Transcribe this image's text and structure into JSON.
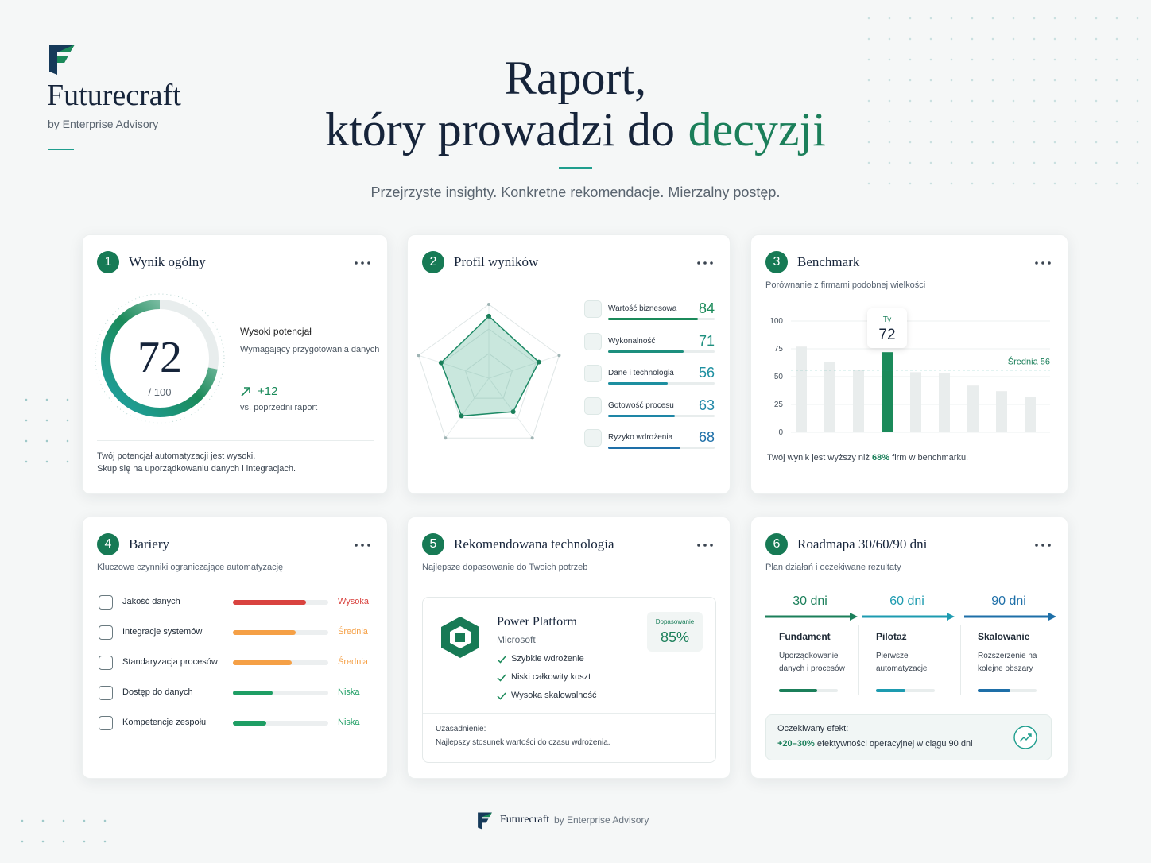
{
  "brand": {
    "name": "Futurecraft",
    "tagline": "by Enterprise Advisory"
  },
  "hero": {
    "line1": "Raport,",
    "line2": "który prowadzi do",
    "highlight": "decyzji",
    "subtitle": "Przejrzyste insighty. Konkretne rekomendacje. Mierzalny postęp."
  },
  "score_card": {
    "number": 1,
    "title": "Wynik ogólny",
    "score": 72,
    "max": {
      "value": 100,
      "label": "/ 100"
    },
    "status": "Wysoki potencjał",
    "status_note": "Wymagający przygotowania danych",
    "delta": "+12",
    "delta_note": "vs. poprzedni raport",
    "summary": [
      "Twój potencjał automatyzacji jest wysoki.",
      "Skup się na uporządkowaniu danych i integracjach."
    ]
  },
  "profile": {
    "number": 2,
    "title": "Profil wyników",
    "max": 100,
    "metrics": [
      {
        "name": "Wartość biznesowa",
        "value": 84,
        "color": "#1b8a5a"
      },
      {
        "name": "Wykonalność",
        "value": 71,
        "color": "#1d8f7e"
      },
      {
        "name": "Dane i technologia",
        "value": 56,
        "color": "#1d8fa0"
      },
      {
        "name": "Gotowość procesu",
        "value": 63,
        "color": "#1e86a6"
      },
      {
        "name": "Ryzyko wdrożenia",
        "value": 68,
        "color": "#1e6fa8"
      }
    ]
  },
  "benchmark": {
    "number": 3,
    "title": "Benchmark",
    "subtitle": "Porównanie z firmami podobnej wielkości",
    "ylim": [
      0,
      100
    ],
    "yticks": [
      0,
      25,
      50,
      75,
      100
    ],
    "values": [
      77,
      63,
      56,
      72,
      54,
      53,
      42,
      37,
      32
    ],
    "highlight_index": 3,
    "highlight_label": "Ty",
    "average": {
      "value": 56,
      "label": "Średnia 56"
    },
    "note_pre": "Twój wynik jest wyższy niż",
    "note_value": "68%",
    "note_post": "firm w benchmarku."
  },
  "barriers": {
    "number": 4,
    "title": "Bariery",
    "subtitle": "Kluczowe czynniki ograniczające automatyzację",
    "items": [
      {
        "name": "Jakość danych",
        "value": 77,
        "level": "Wysoka",
        "color": "#d9433f"
      },
      {
        "name": "Integracje systemów",
        "value": 66,
        "level": "Średnia",
        "color": "#f5a046"
      },
      {
        "name": "Standaryzacja procesów",
        "value": 62,
        "level": "Średnia",
        "color": "#f5a046"
      },
      {
        "name": "Dostęp do danych",
        "value": 42,
        "level": "Niska",
        "color": "#1e9e64"
      },
      {
        "name": "Kompetencje zespołu",
        "value": 35,
        "level": "Niska",
        "color": "#1e9e64"
      }
    ]
  },
  "technology": {
    "number": 5,
    "title": "Rekomendowana technologia",
    "subtitle": "Najlepsze dopasowanie do Twoich potrzeb",
    "product": "Power Platform",
    "vendor": "Microsoft",
    "fit_label": "Dopasowanie",
    "fit": "85%",
    "features": [
      "Szybkie wdrożenie",
      "Niski całkowity koszt",
      "Wysoka skalowalność"
    ],
    "rationale_label": "Uzasadnienie:",
    "rationale": "Najlepszy stosunek wartości do czasu wdrożenia."
  },
  "roadmap": {
    "number": 6,
    "title": "Roadmapa 30/60/90 dni",
    "subtitle": "Plan działań i oczekiwane rezultaty",
    "phases": [
      {
        "label": "30 dni",
        "title": "Fundament",
        "desc": "Uporządkowanie danych i procesów",
        "progress": 65,
        "color": "#1b7f5a"
      },
      {
        "label": "60 dni",
        "title": "Pilotaż",
        "desc": "Pierwsze automatyzacje",
        "progress": 50,
        "color": "#1d9bb0"
      },
      {
        "label": "90 dni",
        "title": "Skalowanie",
        "desc": "Rozszerzenie na kolejne obszary",
        "progress": 55,
        "color": "#1e6fa8"
      }
    ],
    "effect": {
      "label": "Oczekiwany efekt:",
      "highlight": "+20–30%",
      "text": "efektywności operacyjnej w ciągu 90 dni"
    }
  }
}
